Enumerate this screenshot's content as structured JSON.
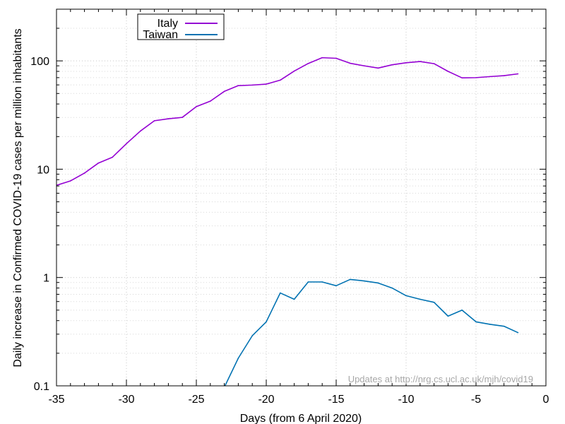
{
  "chart_data": {
    "type": "line",
    "xlabel": "Days (from 6 April 2020)",
    "ylabel": "Daily increase in Confirmed COVID-19 cases per million inhabitants",
    "xlim": [
      -35,
      0
    ],
    "ylim": [
      0.1,
      300
    ],
    "yscale": "log",
    "grid": true,
    "legend_position": "top-left",
    "x_ticks": [
      -35,
      -30,
      -25,
      -20,
      -15,
      -10,
      -5,
      0
    ],
    "x_tick_labels": [
      "-35",
      "-30",
      "-25",
      "-20",
      "-15",
      "-10",
      "-5",
      "0"
    ],
    "y_ticks": [
      0.1,
      1,
      10,
      100
    ],
    "y_tick_labels": [
      "0.1",
      "1",
      "10",
      "100"
    ],
    "footer": "Updates at http://nrg.cs.ucl.ac.uk/mjh/covid19",
    "series": [
      {
        "name": "Italy",
        "color": "#9400d3",
        "x": [
          -35,
          -34,
          -33,
          -32,
          -31,
          -30,
          -29,
          -28,
          -27,
          -26,
          -25,
          -24,
          -23,
          -22,
          -21,
          -20,
          -19,
          -18,
          -17,
          -16,
          -15,
          -14,
          -13,
          -12,
          -11,
          -10,
          -9,
          -8,
          -7,
          -6,
          -5,
          -4,
          -3,
          -2
        ],
        "y": [
          7.1,
          7.8,
          9.2,
          11.4,
          12.9,
          17.2,
          22.5,
          28.0,
          29.2,
          30.1,
          37.8,
          42.5,
          52.3,
          59.1,
          59.8,
          61.0,
          66.4,
          80.5,
          94.6,
          107.0,
          105.6,
          95.0,
          90.0,
          85.8,
          92.0,
          96.0,
          98.6,
          94.2,
          80.0,
          69.7,
          70.0,
          71.6,
          73.0,
          75.9
        ]
      },
      {
        "name": "Taiwan",
        "color": "#0072b2",
        "x": [
          -23,
          -22,
          -21,
          -20,
          -19,
          -18,
          -17,
          -16,
          -15,
          -14,
          -13,
          -12,
          -11,
          -10,
          -9,
          -8,
          -7,
          -6,
          -5,
          -4,
          -3,
          -2
        ],
        "y": [
          0.097,
          0.18,
          0.29,
          0.39,
          0.72,
          0.63,
          0.91,
          0.91,
          0.84,
          0.96,
          0.93,
          0.89,
          0.8,
          0.68,
          0.63,
          0.59,
          0.44,
          0.5,
          0.39,
          0.37,
          0.355,
          0.31
        ]
      }
    ]
  }
}
